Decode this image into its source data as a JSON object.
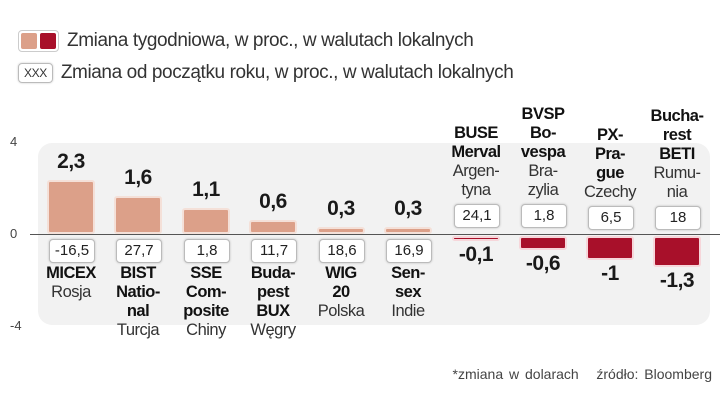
{
  "legend": {
    "weekly": "Zmiana tygodniowa, w proc., w walutach lokalnych",
    "ytd_sample": "XXX",
    "ytd": "Zmiana od początku roku, w proc., w walutach lokalnych"
  },
  "colors": {
    "positive": "#dca089",
    "negative": "#a8102a",
    "panel": "#f2f2f2"
  },
  "chart_data": {
    "type": "bar",
    "ylim": [
      -4,
      4
    ],
    "yticks": [
      "4",
      "0",
      "-4"
    ],
    "categories": [
      {
        "bold": [
          "MICEX"
        ],
        "country": [
          "Rosja"
        ],
        "weekly": 2.3,
        "weekly_label": "2,3",
        "ytd": "-16,5"
      },
      {
        "bold": [
          "BIST",
          "Natio-",
          "nal"
        ],
        "country": [
          "Turcja"
        ],
        "weekly": 1.6,
        "weekly_label": "1,6",
        "ytd": "27,7"
      },
      {
        "bold": [
          "SSE",
          "Com-",
          "posite"
        ],
        "country": [
          "Chiny"
        ],
        "weekly": 1.1,
        "weekly_label": "1,1",
        "ytd": "1,8"
      },
      {
        "bold": [
          "Buda-",
          "pest",
          "BUX"
        ],
        "country": [
          "Węgry"
        ],
        "weekly": 0.6,
        "weekly_label": "0,6",
        "ytd": "11,7"
      },
      {
        "bold": [
          "WIG",
          "20"
        ],
        "country": [
          "Polska"
        ],
        "weekly": 0.3,
        "weekly_label": "0,3",
        "ytd": "18,6"
      },
      {
        "bold": [
          "Sen-",
          "sex"
        ],
        "country": [
          "Indie"
        ],
        "weekly": 0.3,
        "weekly_label": "0,3",
        "ytd": "16,9"
      },
      {
        "bold": [
          "BUSE",
          "Merval"
        ],
        "country": [
          "Argen-",
          "tyna"
        ],
        "weekly": -0.1,
        "weekly_label": "-0,1",
        "ytd": "24,1"
      },
      {
        "bold": [
          "BVSP",
          "Bo-",
          "vespa"
        ],
        "country": [
          "Bra-",
          "zylia"
        ],
        "weekly": -0.6,
        "weekly_label": "-0,6",
        "ytd": "1,8"
      },
      {
        "bold": [
          "PX-",
          "Pra-",
          "gue"
        ],
        "country": [
          "Czechy"
        ],
        "weekly": -1,
        "weekly_label": "-1",
        "ytd": "6,5"
      },
      {
        "bold": [
          "Bucha-",
          "rest",
          "BETI"
        ],
        "country": [
          "Rumu-",
          "nia"
        ],
        "weekly": -1.3,
        "weekly_label": "-1,3",
        "ytd": "18"
      }
    ]
  },
  "footer": {
    "note": "*zmiana w dolarach",
    "source": "źródło: Bloomberg"
  }
}
